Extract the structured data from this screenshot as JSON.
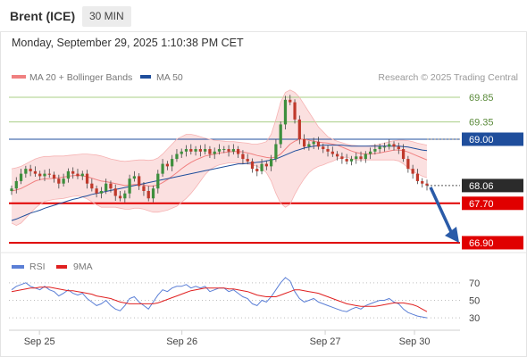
{
  "header": {
    "instrument": "Brent (ICE)",
    "interval": "30 MIN",
    "timestamp": "Monday, September 29, 2025 1:10:38 PM CET"
  },
  "legend": {
    "bollinger_label": "MA 20 + Bollinger Bands",
    "bollinger_color": "#f08080",
    "ma50_label": "MA 50",
    "ma50_color": "#1f4e9c",
    "copyright": "Research © 2025 Trading Central"
  },
  "rsi_legend": {
    "rsi_label": "RSI",
    "rsi_color": "#5b7fd6",
    "ma9_label": "9MA",
    "ma9_color": "#e02020"
  },
  "colors": {
    "up_candle": "#3d8f3d",
    "down_candle": "#c0392b",
    "resistance_line": "#a8cf86",
    "pivot_line": "#1f4e9c",
    "support_line": "#e00000",
    "arrow": "#2a5ba8",
    "band_fill": "#fbe0e0"
  },
  "chart_data": [
    {
      "type": "candlestick",
      "ylim": [
        66.7,
        70.05
      ],
      "x_ticks": [
        "Sep 25",
        "Sep 26",
        "Sep 27",
        "Sep 30"
      ],
      "levels": [
        {
          "value": 69.85,
          "label": "69.85",
          "kind": "resistance"
        },
        {
          "value": 69.35,
          "label": "69.35",
          "kind": "resistance"
        },
        {
          "value": 69.0,
          "label": "69.00",
          "kind": "pivot"
        },
        {
          "value": 68.06,
          "label": "68.06",
          "kind": "last"
        },
        {
          "value": 67.7,
          "label": "67.70",
          "kind": "support"
        },
        {
          "value": 66.9,
          "label": "66.90",
          "kind": "support"
        }
      ],
      "forecast_arrow": {
        "from": 68.06,
        "to": 66.9
      },
      "close": [
        68.0,
        68.15,
        68.3,
        68.4,
        68.35,
        68.3,
        68.25,
        68.3,
        68.28,
        68.2,
        68.1,
        68.2,
        68.35,
        68.3,
        68.25,
        68.3,
        68.1,
        68.0,
        67.9,
        67.95,
        68.1,
        68.0,
        67.85,
        67.8,
        67.9,
        68.2,
        68.25,
        68.05,
        67.95,
        67.8,
        68.0,
        68.3,
        68.5,
        68.45,
        68.6,
        68.7,
        68.75,
        68.8,
        68.75,
        68.8,
        68.75,
        68.8,
        68.7,
        68.75,
        68.8,
        68.8,
        68.75,
        68.8,
        68.7,
        68.6,
        68.55,
        68.4,
        68.35,
        68.5,
        68.45,
        68.6,
        68.9,
        69.3,
        69.8,
        69.75,
        69.4,
        69.0,
        68.85,
        68.9,
        68.95,
        68.85,
        68.8,
        68.75,
        68.7,
        68.65,
        68.6,
        68.55,
        68.6,
        68.65,
        68.6,
        68.7,
        68.75,
        68.8,
        68.85,
        68.85,
        68.9,
        68.85,
        68.8,
        68.6,
        68.4,
        68.3,
        68.15,
        68.1,
        68.06
      ],
      "ma20": [
        67.95,
        67.97,
        68.0,
        68.05,
        68.1,
        68.15,
        68.18,
        68.2,
        68.2,
        68.21,
        68.22,
        68.23,
        68.25,
        68.26,
        68.27,
        68.26,
        68.24,
        68.21,
        68.18,
        68.15,
        68.14,
        68.12,
        68.1,
        68.08,
        68.06,
        68.07,
        68.08,
        68.08,
        68.07,
        68.05,
        68.05,
        68.07,
        68.12,
        68.18,
        68.25,
        68.32,
        68.4,
        68.47,
        68.53,
        68.58,
        68.62,
        68.66,
        68.68,
        68.7,
        68.72,
        68.73,
        68.74,
        68.75,
        68.75,
        68.74,
        68.72,
        68.7,
        68.67,
        68.65,
        68.63,
        68.62,
        68.64,
        68.7,
        68.8,
        68.9,
        68.96,
        69.0,
        69.0,
        68.98,
        68.96,
        68.94,
        68.93,
        68.92,
        68.9,
        68.88,
        68.84,
        68.8,
        68.76,
        68.73,
        68.71,
        68.7,
        68.7,
        68.71,
        68.72,
        68.74,
        68.76,
        68.78,
        68.78,
        68.77,
        68.74,
        68.7,
        68.66,
        68.62,
        68.58
      ],
      "ma50": [
        67.35,
        67.38,
        67.42,
        67.46,
        67.5,
        67.53,
        67.56,
        67.6,
        67.63,
        67.66,
        67.69,
        67.72,
        67.75,
        67.78,
        67.8,
        67.83,
        67.85,
        67.88,
        67.9,
        67.92,
        67.94,
        67.96,
        67.98,
        68.0,
        68.02,
        68.04,
        68.06,
        68.08,
        68.1,
        68.12,
        68.14,
        68.16,
        68.18,
        68.2,
        68.22,
        68.24,
        68.26,
        68.28,
        68.3,
        68.32,
        68.34,
        68.36,
        68.38,
        68.4,
        68.42,
        68.44,
        68.46,
        68.48,
        68.5,
        68.5,
        68.51,
        68.52,
        68.53,
        68.54,
        68.56,
        68.58,
        68.6,
        68.64,
        68.68,
        68.72,
        68.76,
        68.79,
        68.82,
        68.84,
        68.86,
        68.87,
        68.88,
        68.88,
        68.88,
        68.88,
        68.88,
        68.87,
        68.86,
        68.86,
        68.86,
        68.86,
        68.86,
        68.86,
        68.86,
        68.86,
        68.86,
        68.86,
        68.86,
        68.85,
        68.84,
        68.82,
        68.8,
        68.78,
        68.77
      ],
      "bb_upper": [
        68.4,
        68.42,
        68.45,
        68.5,
        68.55,
        68.6,
        68.63,
        68.65,
        68.65,
        68.66,
        68.66,
        68.66,
        68.67,
        68.68,
        68.69,
        68.7,
        68.7,
        68.69,
        68.68,
        68.66,
        68.63,
        68.6,
        68.58,
        68.56,
        68.55,
        68.56,
        68.57,
        68.58,
        68.58,
        68.57,
        68.58,
        68.62,
        68.7,
        68.8,
        68.9,
        69.0,
        69.05,
        69.1,
        69.1,
        69.08,
        69.05,
        69.02,
        69.0,
        68.98,
        68.97,
        68.96,
        68.95,
        68.95,
        68.94,
        68.93,
        68.92,
        68.9,
        68.9,
        68.92,
        68.95,
        69.1,
        69.4,
        69.75,
        69.95,
        70.0,
        69.95,
        69.85,
        69.7,
        69.55,
        69.4,
        69.25,
        69.15,
        69.05,
        69.0,
        68.96,
        68.93,
        68.9,
        68.88,
        68.87,
        68.86,
        68.86,
        68.87,
        68.88,
        68.9,
        68.92,
        68.95,
        68.97,
        68.98,
        68.98,
        68.97,
        68.95,
        68.92,
        68.9,
        68.88
      ],
      "bb_lower": [
        67.3,
        67.25,
        67.3,
        67.4,
        67.5,
        67.6,
        67.68,
        67.74,
        67.76,
        67.78,
        67.79,
        67.8,
        67.82,
        67.84,
        67.85,
        67.83,
        67.79,
        67.73,
        67.67,
        67.62,
        67.62,
        67.62,
        67.62,
        67.6,
        67.58,
        67.58,
        67.6,
        67.6,
        67.58,
        67.55,
        67.52,
        67.52,
        67.54,
        67.56,
        67.6,
        67.64,
        67.72,
        67.8,
        67.9,
        68.02,
        68.15,
        68.28,
        68.38,
        68.44,
        68.48,
        68.5,
        68.52,
        68.52,
        68.52,
        68.52,
        68.5,
        68.48,
        68.45,
        68.4,
        68.32,
        68.15,
        67.9,
        67.7,
        67.62,
        67.68,
        67.88,
        68.05,
        68.2,
        68.32,
        68.4,
        68.45,
        68.48,
        68.52,
        68.55,
        68.6,
        68.62,
        68.64,
        68.6,
        68.58,
        68.58,
        68.58,
        68.58,
        68.58,
        68.58,
        68.58,
        68.58,
        68.58,
        68.56,
        68.5,
        68.42,
        68.35,
        68.3,
        68.25,
        68.22
      ]
    },
    {
      "type": "line",
      "ylim": [
        25,
        78
      ],
      "y_ticks": [
        70,
        50,
        30
      ],
      "series": [
        {
          "name": "RSI",
          "values": [
            62,
            66,
            68,
            70,
            66,
            64,
            62,
            66,
            62,
            60,
            55,
            58,
            62,
            58,
            56,
            58,
            52,
            48,
            44,
            46,
            50,
            44,
            40,
            38,
            44,
            52,
            54,
            48,
            44,
            40,
            48,
            56,
            62,
            60,
            64,
            66,
            66,
            68,
            64,
            66,
            64,
            66,
            60,
            62,
            64,
            64,
            60,
            62,
            58,
            54,
            52,
            46,
            44,
            50,
            48,
            54,
            62,
            70,
            76,
            72,
            60,
            52,
            48,
            50,
            52,
            48,
            46,
            44,
            42,
            40,
            38,
            37,
            40,
            42,
            40,
            44,
            46,
            48,
            50,
            50,
            52,
            48,
            46,
            40,
            36,
            34,
            32,
            31,
            30
          ]
        },
        {
          "name": "9MA",
          "values": [
            60,
            61,
            62,
            63,
            64,
            64,
            65,
            65,
            65,
            64,
            63,
            62,
            61,
            61,
            60,
            59,
            58,
            57,
            55,
            54,
            53,
            52,
            50,
            48,
            47,
            46,
            46,
            46,
            46,
            46,
            46,
            47,
            49,
            51,
            53,
            55,
            57,
            59,
            61,
            62,
            63,
            64,
            64,
            64,
            64,
            64,
            63,
            63,
            62,
            61,
            60,
            58,
            56,
            55,
            54,
            54,
            54,
            56,
            58,
            60,
            62,
            62,
            61,
            60,
            59,
            58,
            56,
            54,
            52,
            50,
            48,
            46,
            45,
            44,
            43,
            43,
            43,
            43,
            44,
            45,
            46,
            47,
            47,
            47,
            46,
            45,
            43,
            40,
            37
          ]
        }
      ]
    }
  ]
}
